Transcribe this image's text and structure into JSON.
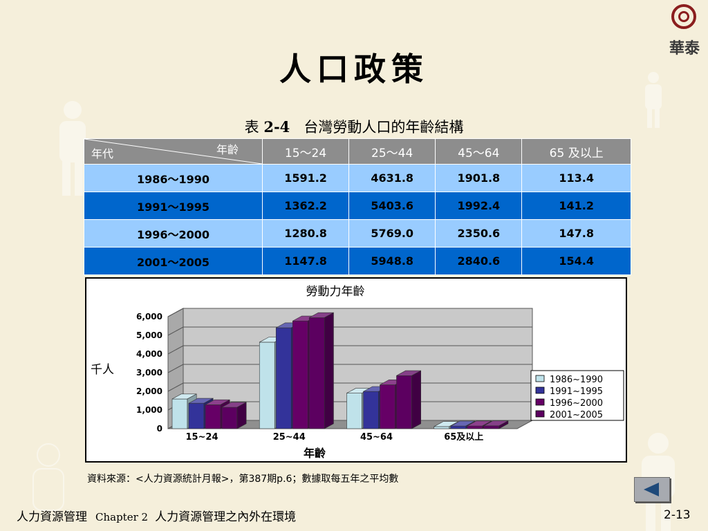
{
  "title": "人口政策",
  "logo": {
    "text": "華泰"
  },
  "table": {
    "caption_prefix": "表",
    "caption_number": "2-4",
    "caption_text": "台灣勞動人口的年齡結構",
    "corner_left": "年代",
    "corner_right": "年齡",
    "columns": [
      "15～24",
      "25～44",
      "45～64",
      "65 及以上"
    ],
    "rows": [
      {
        "period": "1986～1990",
        "values": [
          "1591.2",
          "4631.8",
          "1901.8",
          "113.4"
        ]
      },
      {
        "period": "1991～1995",
        "values": [
          "1362.2",
          "5403.6",
          "1992.4",
          "141.2"
        ]
      },
      {
        "period": "1996～2000",
        "values": [
          "1280.8",
          "5769.0",
          "2350.6",
          "147.8"
        ]
      },
      {
        "period": "2001～2005",
        "values": [
          "1147.8",
          "5948.8",
          "2840.6",
          "154.4"
        ]
      }
    ]
  },
  "chart_data": {
    "type": "bar",
    "title": "勞動力年齡",
    "xlabel": "年齡",
    "ylabel": "千人",
    "categories": [
      "15~24",
      "25~44",
      "45~64",
      "65及以上"
    ],
    "ylim": [
      0,
      6000
    ],
    "yticks": [
      "0",
      "1,000",
      "2,000",
      "3,000",
      "4,000",
      "5,000",
      "6,000"
    ],
    "legend_position": "right",
    "grid": true,
    "series": [
      {
        "name": "1986~1990",
        "values": [
          1591.2,
          4631.8,
          1901.8,
          113.4
        ],
        "color": "#bfe2ea"
      },
      {
        "name": "1991~1995",
        "values": [
          1362.2,
          5403.6,
          1992.4,
          141.2
        ],
        "color": "#33339a"
      },
      {
        "name": "1996~2000",
        "values": [
          1280.8,
          5769.0,
          2350.6,
          147.8
        ],
        "color": "#660066"
      },
      {
        "name": "2001~2005",
        "values": [
          1147.8,
          5948.8,
          2840.6,
          154.4
        ],
        "color": "#5c0060"
      }
    ]
  },
  "source_note": "資料來源：<人力資源統計月報>，第387期p.6；數據取每五年之平均數",
  "footer": {
    "course": "人力資源管理",
    "chapter": "Chapter 2",
    "chapter_title": "人力資源管理之內外在環境",
    "page": "2-13"
  },
  "nav": {
    "icon": "back-arrow-icon"
  }
}
